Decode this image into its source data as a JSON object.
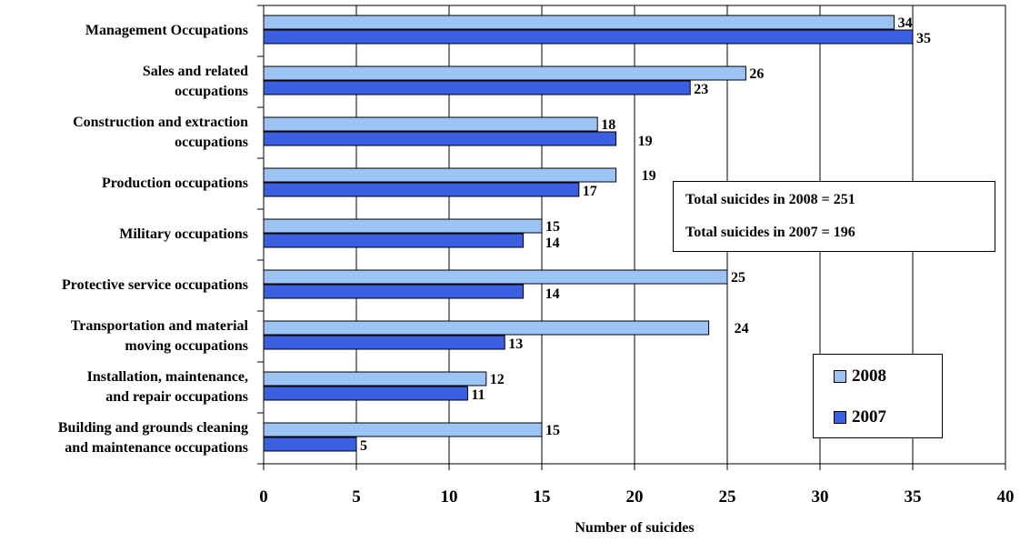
{
  "chart_data": {
    "type": "bar",
    "orientation": "horizontal",
    "categories": [
      "Management Occupations",
      "Sales and related occupations",
      "Construction and extraction occupations",
      "Production occupations",
      "Military occupations",
      "Protective service occupations",
      "Transportation and material moving occupations",
      "Installation, maintenance, and repair occupations",
      "Building and grounds cleaning and maintenance occupations"
    ],
    "category_lines": [
      [
        "Management Occupations"
      ],
      [
        "Sales and related",
        "occupations"
      ],
      [
        "Construction and extraction",
        "occupations"
      ],
      [
        "Production occupations"
      ],
      [
        "Military occupations"
      ],
      [
        "Protective service occupations"
      ],
      [
        "Transportation and material",
        "moving occupations"
      ],
      [
        "Installation, maintenance,",
        "and repair occupations"
      ],
      [
        "Building and grounds cleaning",
        "and maintenance occupations"
      ]
    ],
    "series": [
      {
        "name": "2008",
        "color": "#9dc3f5",
        "values": [
          34,
          26,
          18,
          19,
          15,
          25,
          24,
          12,
          15
        ]
      },
      {
        "name": "2007",
        "color": "#3a5fe0",
        "values": [
          35,
          23,
          19,
          17,
          14,
          14,
          13,
          11,
          5
        ]
      }
    ],
    "xlabel": "Number of suicides",
    "xlim": [
      0,
      40
    ],
    "xticks": [
      "0",
      "5",
      "10",
      "15",
      "20",
      "25",
      "30",
      "35",
      "40"
    ],
    "grid": "vertical",
    "legend_position": "lower-right",
    "annotations": [
      "Total suicides in 2008 = 251",
      "Total suicides in 2007 = 196"
    ]
  }
}
